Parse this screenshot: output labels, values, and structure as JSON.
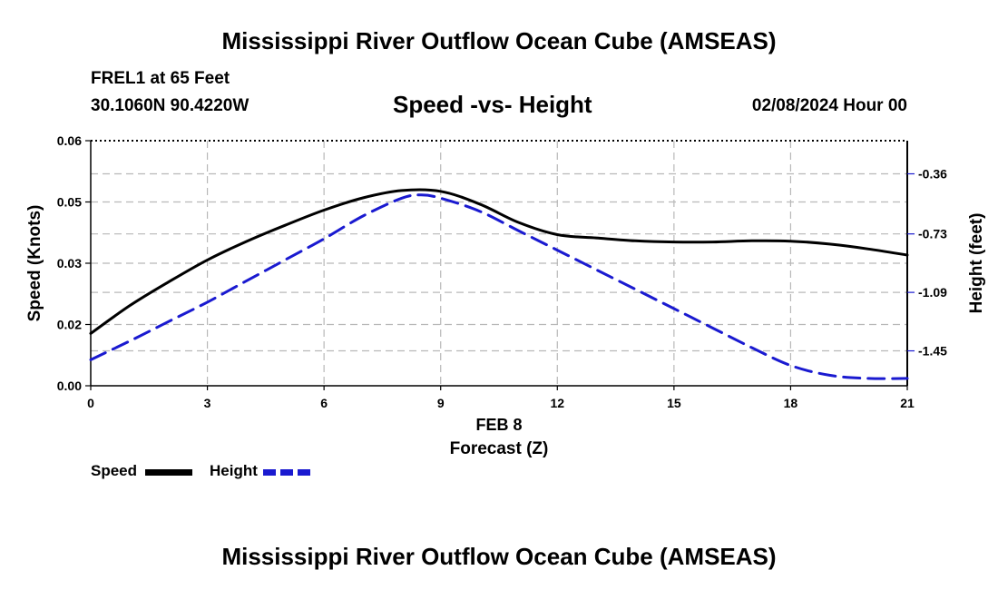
{
  "page": {
    "title_top": "Mississippi River Outflow Ocean Cube (AMSEAS)",
    "title_bottom": "Mississippi River Outflow Ocean Cube (AMSEAS)",
    "station": "FREL1 at 65 Feet",
    "coords": "30.1060N  90.4220W",
    "subtitle": "Speed -vs- Height",
    "datetime": "02/08/2024 Hour 00"
  },
  "chart_data": {
    "type": "line",
    "title": "Speed -vs- Height",
    "xlabel": "Forecast (Z)",
    "xlabel_date": "FEB 8",
    "ylabel": "Speed (Knots)",
    "y2label": "Height (feet)",
    "xlim": [
      0,
      21
    ],
    "ylim": [
      0,
      0.06
    ],
    "y2lim": [
      -1.665,
      -0.156
    ],
    "x_ticks": [
      0,
      3,
      6,
      9,
      12,
      15,
      18,
      21
    ],
    "x_tick_labels": [
      "0",
      "3",
      "6",
      "9",
      "12",
      "15",
      "18",
      "21"
    ],
    "y_ticks": [
      0,
      0.015,
      0.03,
      0.045,
      0.06
    ],
    "y_tick_labels": [
      "0.00",
      "0.02",
      "0.03",
      "0.05",
      "0.06"
    ],
    "y2_ticks": [
      -0.36,
      -0.73,
      -1.09,
      -1.45
    ],
    "y2_tick_labels": [
      "-0.36",
      "-0.73",
      "-1.09",
      "-1.45"
    ],
    "grid": true,
    "legend_position": "bottom-left",
    "series": [
      {
        "name": "Speed",
        "axis": "left",
        "color": "#000000",
        "style": "solid",
        "x": [
          0,
          1,
          2,
          3,
          4,
          5,
          6,
          7,
          8,
          9,
          10,
          11,
          12,
          13,
          14,
          15,
          16,
          17,
          18,
          19,
          20,
          21
        ],
        "values": [
          0.0128,
          0.0196,
          0.0254,
          0.0308,
          0.0353,
          0.0393,
          0.043,
          0.046,
          0.0478,
          0.0476,
          0.0445,
          0.04,
          0.037,
          0.0362,
          0.0355,
          0.0352,
          0.0352,
          0.0355,
          0.0354,
          0.0347,
          0.0335,
          0.032
        ]
      },
      {
        "name": "Height",
        "axis": "right",
        "color": "#1a1ad0",
        "style": "dashed",
        "x": [
          0,
          1,
          2,
          3,
          4,
          5,
          6,
          7,
          8,
          8.5,
          9,
          10,
          11,
          12,
          13,
          14,
          15,
          16,
          17,
          18,
          19,
          20,
          21
        ],
        "values": [
          -1.505,
          -1.39,
          -1.27,
          -1.15,
          -1.02,
          -0.89,
          -0.76,
          -0.62,
          -0.51,
          -0.49,
          -0.51,
          -0.59,
          -0.71,
          -0.83,
          -0.95,
          -1.07,
          -1.19,
          -1.31,
          -1.43,
          -1.54,
          -1.6,
          -1.62,
          -1.62
        ]
      }
    ]
  }
}
